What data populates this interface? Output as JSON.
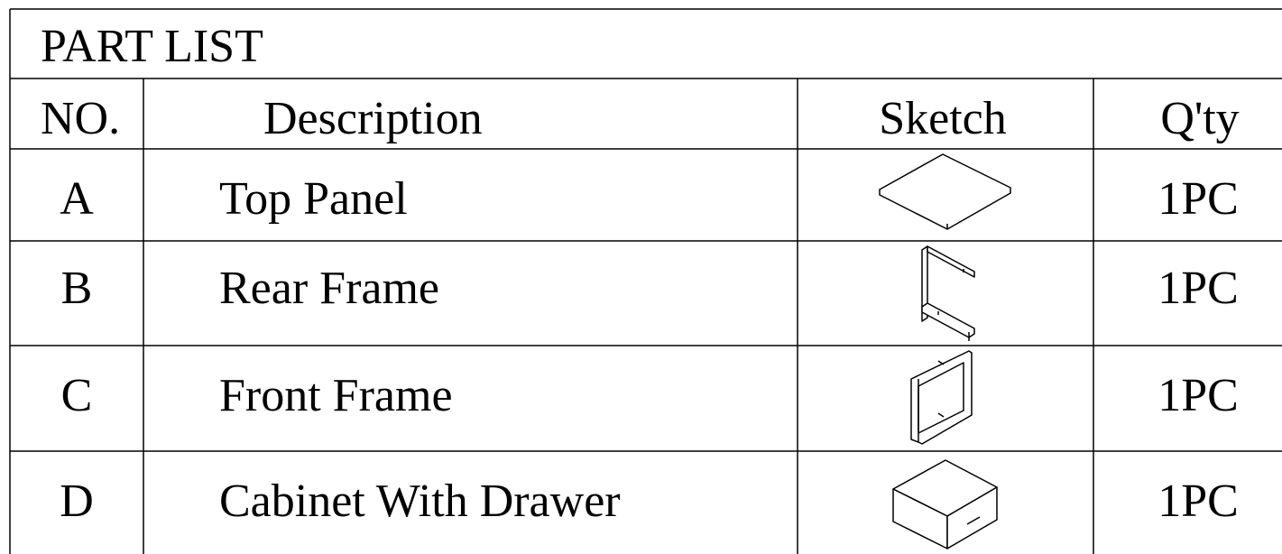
{
  "title": "PART LIST",
  "header": [
    "NO.",
    "Description",
    "Sketch",
    "Q'ty"
  ],
  "rows": [
    {
      "no": "A",
      "description": "Top Panel",
      "qty": "1PC"
    },
    {
      "no": "B",
      "description": "Rear Frame",
      "qty": "1PC"
    },
    {
      "no": "C",
      "description": "Front Frame",
      "qty": "1PC"
    },
    {
      "no": "D",
      "description": "Cabinet With Drawer",
      "qty": "1PC"
    }
  ]
}
